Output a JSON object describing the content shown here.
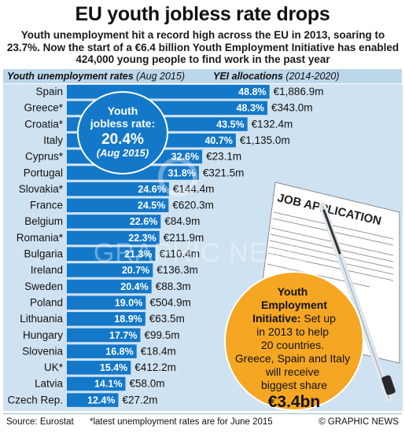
{
  "title": "EU youth jobless rate drops",
  "subtitle": "Youth unemployment hit a record high across the EU in 2013, soaring to 23.7%. Now the start of a €6.4 billion Youth Employment Initiative has enabled 424,000 young people to find work in the past year",
  "header": {
    "rates_label": "Youth unemployment rates",
    "rates_period": "(Aug 2015)",
    "yei_label": "YEI allocations",
    "yei_period": "(2014-2020)"
  },
  "callout_rate": {
    "line1": "Youth",
    "line2": "jobless rate:",
    "value": "20.4%",
    "period": "(Aug 2015)"
  },
  "callout_yei": {
    "line1": "Youth",
    "line2": "Employment",
    "line3_bold": "Initiative:",
    "line3_rest": " Set up",
    "line4": "in 2013 to help",
    "line5": "20 countries.",
    "line6": "Greece, Spain and Italy",
    "line7": "will receive",
    "line8": "biggest share",
    "value": "€3.4bn"
  },
  "form": {
    "heading": "JOB APPLICATION"
  },
  "watermark": "GRAPHIC NEWS",
  "footer": {
    "source": "Source: Eurostat",
    "note": "*latest unemployment rates are for June 2015",
    "credit": "© GRAPHIC NEWS"
  },
  "colors": {
    "bar": "#1478c8",
    "panel": "#cfe2f1",
    "header_band": "#bcd6ea",
    "callout_blue": "#1478c8",
    "callout_orange": "#f5a623"
  },
  "chart_data": {
    "type": "bar",
    "orientation": "horizontal",
    "categories": [
      "Spain",
      "Greece*",
      "Croatia*",
      "Italy",
      "Cyprus*",
      "Portugal",
      "Slovakia*",
      "France",
      "Belgium",
      "Romania*",
      "Bulgaria",
      "Ireland",
      "Sweden",
      "Poland",
      "Lithuania",
      "Hungary",
      "Slovenia",
      "UK*",
      "Latvia",
      "Czech Rep."
    ],
    "series": [
      {
        "values": [
          48.8,
          48.3,
          43.5,
          40.7,
          32.6,
          31.8,
          24.6,
          24.5,
          22.6,
          22.3,
          21.3,
          20.7,
          20.4,
          19.0,
          18.9,
          17.7,
          16.8,
          15.4,
          14.1,
          12.4
        ],
        "labels": [
          "48.8%",
          "48.3%",
          "43.5%",
          "40.7%",
          "32.6%",
          "31.8%",
          "24.6%",
          "24.5%",
          "22.6%",
          "22.3%",
          "21.3%",
          "20.7%",
          "20.4%",
          "19.0%",
          "18.9%",
          "17.7%",
          "16.8%",
          "15.4%",
          "14.1%",
          "12.4%"
        ]
      }
    ],
    "yei_allocations": [
      "€1,886.9m",
      "€343.0m",
      "€132.4m",
      "€1,135.0m",
      "€23.1m",
      "€321.5m",
      "€144.4m",
      "€620.3m",
      "€84.9m",
      "€211.9m",
      "€110.4m",
      "€136.3m",
      "€88.3m",
      "€504.9m",
      "€63.5m",
      "€99.5m",
      "€18.4m",
      "€412.2m",
      "€58.0m",
      "€27.2m"
    ],
    "xlim": [
      0,
      50
    ]
  }
}
